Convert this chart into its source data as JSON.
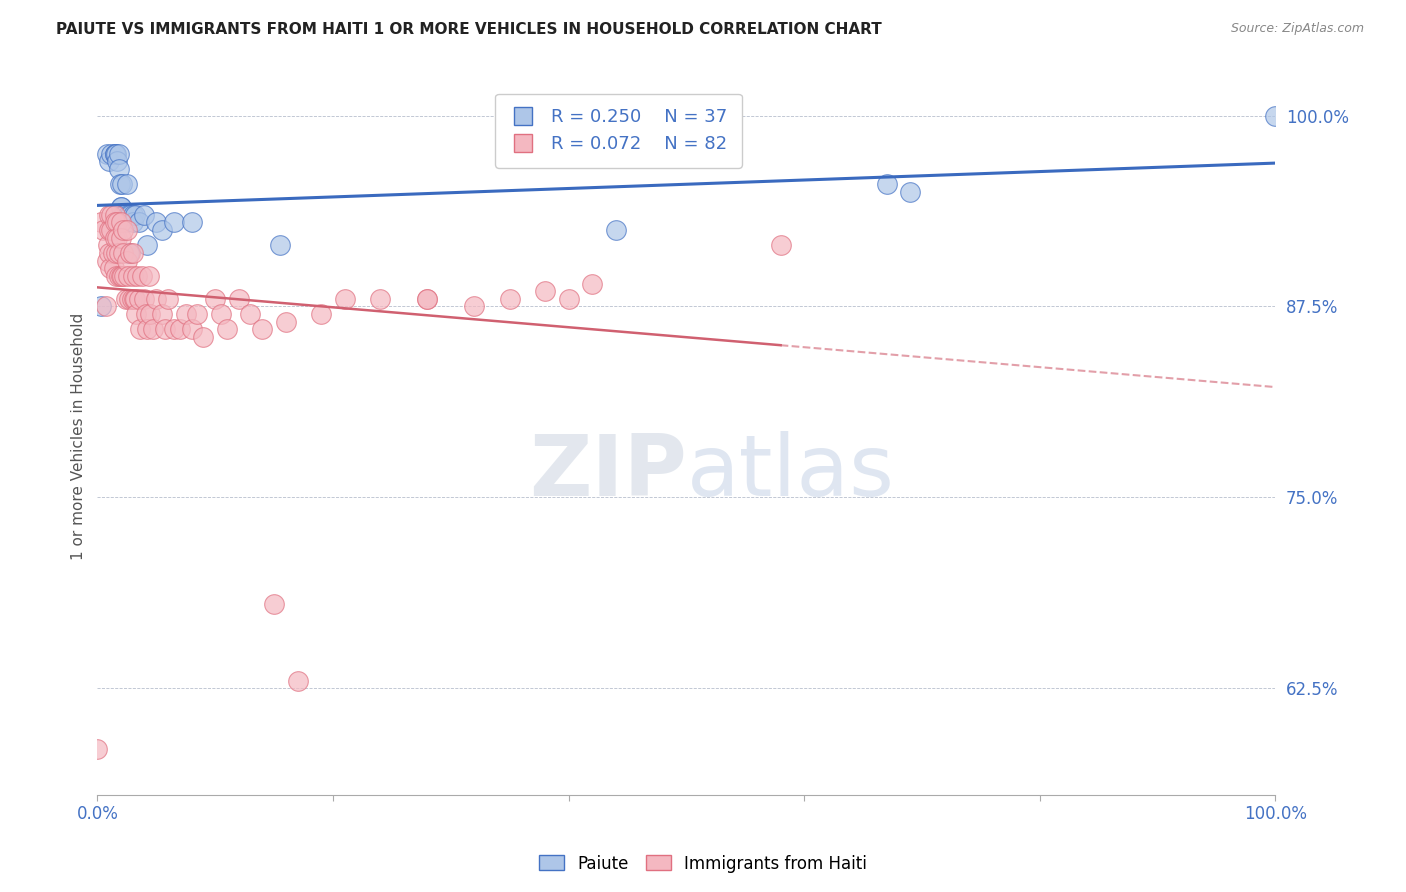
{
  "title": "PAIUTE VS IMMIGRANTS FROM HAITI 1 OR MORE VEHICLES IN HOUSEHOLD CORRELATION CHART",
  "source": "Source: ZipAtlas.com",
  "ylabel": "1 or more Vehicles in Household",
  "xlim": [
    0.0,
    1.0
  ],
  "ylim": [
    0.555,
    1.025
  ],
  "yticks": [
    0.625,
    0.75,
    0.875,
    1.0
  ],
  "ytick_labels": [
    "62.5%",
    "75.0%",
    "87.5%",
    "100.0%"
  ],
  "legend_r_blue": "R = 0.250",
  "legend_n_blue": "N = 37",
  "legend_r_pink": "R = 0.072",
  "legend_n_pink": "N = 82",
  "legend_label_blue": "Paiute",
  "legend_label_pink": "Immigrants from Haiti",
  "blue_color": "#aec6e8",
  "blue_edge_color": "#4472c4",
  "pink_color": "#f4b8c1",
  "pink_edge_color": "#e07080",
  "blue_line_color": "#3a6abf",
  "pink_line_color": "#d06070",
  "axis_color": "#4472c4",
  "blue_scatter_x": [
    0.003,
    0.008,
    0.01,
    0.012,
    0.015,
    0.015,
    0.016,
    0.017,
    0.018,
    0.018,
    0.019,
    0.02,
    0.02,
    0.021,
    0.022,
    0.022,
    0.023,
    0.024,
    0.025,
    0.026,
    0.027,
    0.028,
    0.03,
    0.03,
    0.032,
    0.035,
    0.04,
    0.042,
    0.05,
    0.055,
    0.065,
    0.08,
    0.155,
    0.44,
    0.67,
    0.69,
    1.0
  ],
  "blue_scatter_y": [
    0.875,
    0.975,
    0.97,
    0.975,
    0.975,
    0.975,
    0.975,
    0.97,
    0.975,
    0.965,
    0.955,
    0.94,
    0.94,
    0.955,
    0.935,
    0.935,
    0.935,
    0.93,
    0.955,
    0.935,
    0.91,
    0.935,
    0.935,
    0.93,
    0.935,
    0.93,
    0.935,
    0.915,
    0.93,
    0.925,
    0.93,
    0.93,
    0.915,
    0.925,
    0.955,
    0.95,
    1.0
  ],
  "pink_scatter_x": [
    0.0,
    0.003,
    0.005,
    0.007,
    0.008,
    0.009,
    0.01,
    0.01,
    0.01,
    0.011,
    0.012,
    0.012,
    0.013,
    0.014,
    0.015,
    0.015,
    0.015,
    0.016,
    0.016,
    0.017,
    0.017,
    0.018,
    0.018,
    0.02,
    0.02,
    0.02,
    0.021,
    0.022,
    0.022,
    0.023,
    0.024,
    0.025,
    0.025,
    0.026,
    0.027,
    0.028,
    0.029,
    0.03,
    0.03,
    0.031,
    0.032,
    0.033,
    0.034,
    0.035,
    0.036,
    0.038,
    0.04,
    0.041,
    0.042,
    0.044,
    0.045,
    0.047,
    0.05,
    0.055,
    0.057,
    0.06,
    0.065,
    0.07,
    0.075,
    0.08,
    0.085,
    0.09,
    0.1,
    0.105,
    0.11,
    0.12,
    0.13,
    0.14,
    0.15,
    0.16,
    0.17,
    0.19,
    0.21,
    0.24,
    0.28,
    0.28,
    0.32,
    0.35,
    0.38,
    0.4,
    0.42,
    0.58
  ],
  "pink_scatter_y": [
    0.585,
    0.93,
    0.925,
    0.875,
    0.905,
    0.915,
    0.935,
    0.925,
    0.91,
    0.9,
    0.935,
    0.925,
    0.91,
    0.9,
    0.935,
    0.93,
    0.92,
    0.91,
    0.895,
    0.93,
    0.92,
    0.91,
    0.895,
    0.93,
    0.92,
    0.895,
    0.895,
    0.925,
    0.91,
    0.895,
    0.88,
    0.925,
    0.905,
    0.895,
    0.88,
    0.91,
    0.88,
    0.91,
    0.895,
    0.88,
    0.88,
    0.87,
    0.895,
    0.88,
    0.86,
    0.895,
    0.88,
    0.87,
    0.86,
    0.895,
    0.87,
    0.86,
    0.88,
    0.87,
    0.86,
    0.88,
    0.86,
    0.86,
    0.87,
    0.86,
    0.87,
    0.855,
    0.88,
    0.87,
    0.86,
    0.88,
    0.87,
    0.86,
    0.68,
    0.865,
    0.63,
    0.87,
    0.88,
    0.88,
    0.88,
    0.88,
    0.875,
    0.88,
    0.885,
    0.88,
    0.89,
    0.915
  ]
}
